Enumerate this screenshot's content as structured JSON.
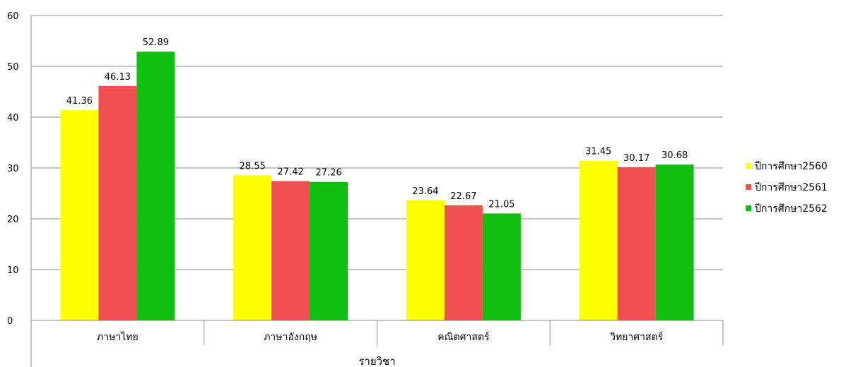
{
  "chart_data": {
    "type": "bar",
    "title": "",
    "xlabel": "รายวิชา",
    "ylabel": "",
    "ylim": [
      0,
      60
    ],
    "yticks": [
      0,
      10,
      20,
      30,
      40,
      50,
      60
    ],
    "grid": true,
    "legend_position": "right",
    "categories": [
      "ภาษาไทย",
      "ภาษาอังกฤษ",
      "คณิตศาสตร์",
      "วิทยาศาสตร์"
    ],
    "series": [
      {
        "name": "ปีการศึกษา2560",
        "color": "#ffff00",
        "values": [
          41.36,
          28.55,
          23.64,
          31.45
        ]
      },
      {
        "name": "ปีการศึกษา2561",
        "color": "#f05050",
        "values": [
          46.13,
          27.42,
          22.67,
          30.17
        ]
      },
      {
        "name": "ปีการศึกษา2562",
        "color": "#10c010",
        "values": [
          52.89,
          27.26,
          21.05,
          30.68
        ]
      }
    ]
  }
}
